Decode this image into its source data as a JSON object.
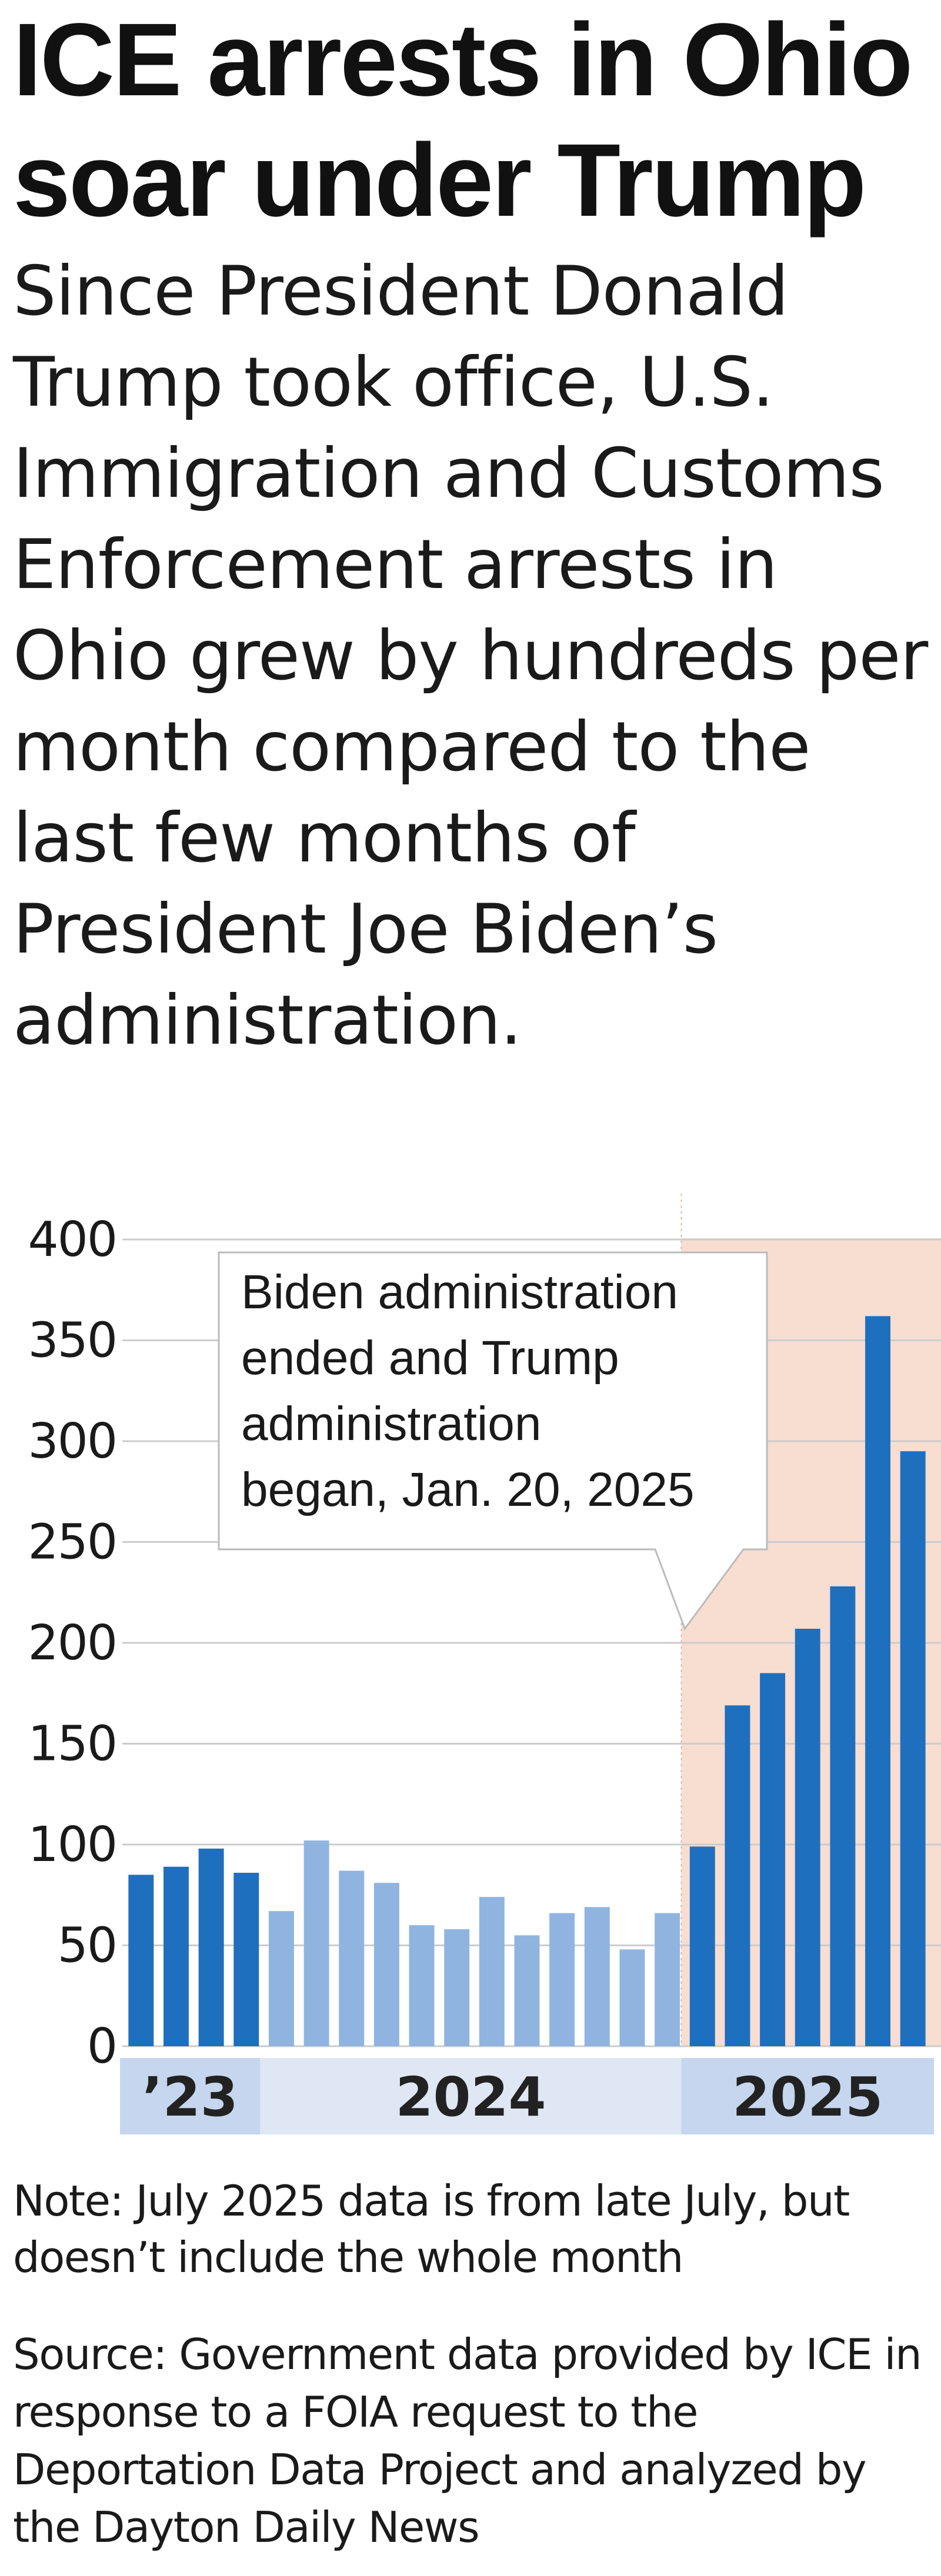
{
  "title": "ICE arrests in Ohio soar under Trump",
  "dek": "Since President Donald Trump took office, U.S. Immigration and Customs Enforcement arrests in Ohio grew by hundreds per month compared to the last few months of President Joe Biden’s administration.",
  "note": "Note: July 2025 data is from late July, but doesn’t include the whole month",
  "source": "Source: Government data provided by ICE in response to a FOIA request to the Deportation Data Project and analyzed by the Dayton Daily News",
  "colors": {
    "dark_bar": "#1f6fbf",
    "light_bar": "#8fb4e0",
    "trump_shade": "#f8ddd1",
    "year_band": "#dfe7f4",
    "year_band_dark": "#c5d6ee",
    "gridline": "#cccccc",
    "annotation_border": "#bbbbbb"
  },
  "chart_data": {
    "type": "bar",
    "title": "",
    "xlabel": "",
    "ylabel": "",
    "ylim": [
      0,
      400
    ],
    "yticks": [
      "0",
      "50",
      "100",
      "150",
      "200",
      "250",
      "300",
      "350",
      "400"
    ],
    "grid": true,
    "values": [
      85,
      89,
      98,
      86,
      67,
      102,
      87,
      81,
      60,
      58,
      74,
      55,
      66,
      69,
      48,
      66,
      99,
      169,
      185,
      207,
      228,
      362,
      295
    ],
    "bar_shades": [
      "dark",
      "dark",
      "dark",
      "dark",
      "light",
      "light",
      "light",
      "light",
      "light",
      "light",
      "light",
      "light",
      "light",
      "light",
      "light",
      "light",
      "dark",
      "dark",
      "dark",
      "dark",
      "dark",
      "dark",
      "dark"
    ],
    "trump_shaded_from_index": 16,
    "year_groups": [
      {
        "label": "’23",
        "count": 4
      },
      {
        "label": "2024",
        "count": 12
      },
      {
        "label": "2025",
        "count": 7
      }
    ],
    "annotation": "Biden administration ended and Trump administration began, Jan. 20, 2025"
  }
}
